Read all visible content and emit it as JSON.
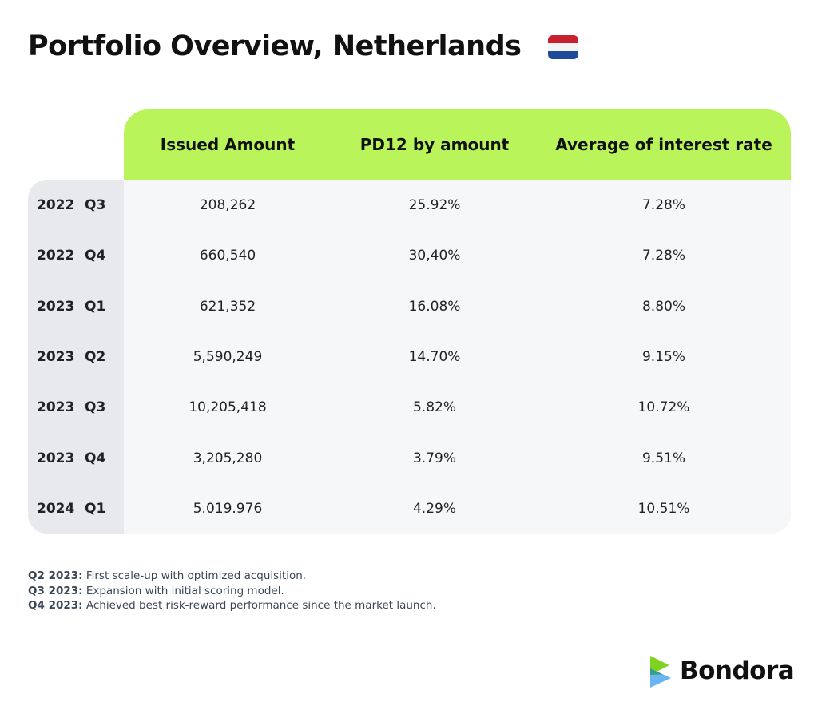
{
  "header": {
    "title": "Portfolio Overview, Netherlands"
  },
  "table": {
    "columns": [
      "Issued Amount",
      "PD12 by amount",
      "Average of interest rate"
    ],
    "rows": [
      [
        "2022",
        "Q3",
        "208,262",
        "25.92%",
        "7.28%"
      ],
      [
        "2022",
        "Q4",
        "660,540",
        "30,40%",
        "7.28%"
      ],
      [
        "2023",
        "Q1",
        "621,352",
        "16.08%",
        "8.80%"
      ],
      [
        "2023",
        "Q2",
        "5,590,249",
        "14.70%",
        "9.15%"
      ],
      [
        "2023",
        "Q3",
        "10,205,418",
        "5.82%",
        "10.72%"
      ],
      [
        "2023",
        "Q4",
        "3,205,280",
        "3.79%",
        "9.51%"
      ],
      [
        "2024",
        "Q1",
        "5.019.976",
        "4.29%",
        "10.51%"
      ]
    ]
  },
  "notes": [
    {
      "label": "Q2 2023:",
      "text": "First scale-up with optimized acquisition."
    },
    {
      "label": "Q3 2023:",
      "text": "Expansion with initial scoring model."
    },
    {
      "label": "Q4 2023:",
      "text": "Achieved best risk-reward performance since the market launch."
    }
  ],
  "logo": {
    "text": "Bondora"
  }
}
